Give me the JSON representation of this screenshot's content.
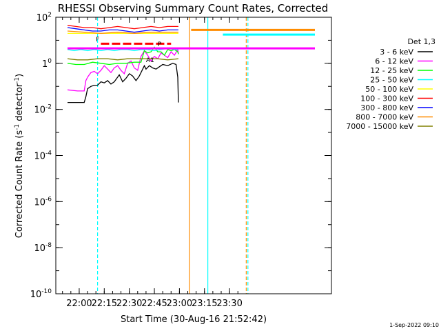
{
  "chart_data": {
    "type": "line",
    "title": "RHESSI Observing Summary Count Rates, Corrected",
    "xlabel": "Start Time (30-Aug-16 21:52:42)",
    "ylabel_base": "Corrected Count Rate (s",
    "ylabel_sup1": "-1",
    "ylabel_mid": " detector",
    "ylabel_sup2": "-1",
    "ylabel_end": ")",
    "y_log": true,
    "x_range_min": [
      -7,
      158
    ],
    "ylim_log10": [
      -10,
      2
    ],
    "x_ticks": [
      {
        "min": 7,
        "label": "22:00"
      },
      {
        "min": 22,
        "label": "22:15"
      },
      {
        "min": 37,
        "label": "22:30"
      },
      {
        "min": 52,
        "label": "22:45"
      },
      {
        "min": 67,
        "label": "23:00"
      },
      {
        "min": 82,
        "label": "23:15"
      },
      {
        "min": 97,
        "label": "23:30"
      }
    ],
    "y_ticks": [
      {
        "exp": 2,
        "base": "10",
        "sup": "2"
      },
      {
        "exp": 0,
        "base": "1",
        "sup": "0"
      },
      {
        "exp": -2,
        "base": "10",
        "sup": "-2"
      },
      {
        "exp": -4,
        "base": "10",
        "sup": "-4"
      },
      {
        "exp": -6,
        "base": "10",
        "sup": "-6"
      },
      {
        "exp": -8,
        "base": "10",
        "sup": "-8"
      },
      {
        "exp": -10,
        "base": "10",
        "sup": "-10"
      }
    ],
    "legend_title": "Det 1,3",
    "legend_position": "right",
    "series": [
      {
        "name": "3 - 6 keV",
        "color": "#000000",
        "points": [
          [
            0,
            -1.7
          ],
          [
            6,
            -1.7
          ],
          [
            10,
            -1.7
          ],
          [
            11,
            -1.45
          ],
          [
            12,
            -1.1
          ],
          [
            14,
            -1.0
          ],
          [
            16,
            -0.95
          ],
          [
            18,
            -0.95
          ],
          [
            20,
            -0.8
          ],
          [
            22,
            -0.85
          ],
          [
            24,
            -0.75
          ],
          [
            26,
            -0.9
          ],
          [
            28,
            -0.8
          ],
          [
            30,
            -0.6
          ],
          [
            31,
            -0.5
          ],
          [
            33,
            -0.8
          ],
          [
            35,
            -0.65
          ],
          [
            37,
            -0.45
          ],
          [
            39,
            -0.55
          ],
          [
            41,
            -0.75
          ],
          [
            43,
            -0.55
          ],
          [
            45,
            -0.25
          ],
          [
            46,
            -0.1
          ],
          [
            47,
            -0.25
          ],
          [
            49,
            -0.1
          ],
          [
            51,
            -0.2
          ],
          [
            53,
            -0.25
          ],
          [
            55,
            -0.15
          ],
          [
            57,
            -0.05
          ],
          [
            60,
            -0.1
          ],
          [
            63,
            0.0
          ],
          [
            65,
            -0.05
          ],
          [
            66,
            -0.6
          ],
          [
            66.4,
            -1.7
          ]
        ]
      },
      {
        "name": "6 - 12 keV",
        "color": "#ff00ff",
        "points": [
          [
            0,
            -1.15
          ],
          [
            6,
            -1.2
          ],
          [
            10,
            -1.2
          ],
          [
            11,
            -0.75
          ],
          [
            12,
            -0.6
          ],
          [
            14,
            -0.4
          ],
          [
            16,
            -0.35
          ],
          [
            18,
            -0.45
          ],
          [
            20,
            -0.3
          ],
          [
            22,
            -0.1
          ],
          [
            24,
            -0.25
          ],
          [
            26,
            -0.4
          ],
          [
            28,
            -0.2
          ],
          [
            30,
            -0.1
          ],
          [
            32,
            -0.3
          ],
          [
            34,
            -0.45
          ],
          [
            36,
            0.0
          ],
          [
            38,
            0.1
          ],
          [
            40,
            -0.2
          ],
          [
            42,
            -0.3
          ],
          [
            44,
            0.3
          ],
          [
            46,
            0.55
          ],
          [
            48,
            0.35
          ],
          [
            50,
            0.1
          ],
          [
            52,
            0.3
          ],
          [
            54,
            0.2
          ],
          [
            56,
            0.45
          ],
          [
            58,
            0.35
          ],
          [
            60,
            0.25
          ],
          [
            62,
            0.5
          ],
          [
            64,
            0.35
          ],
          [
            66,
            0.6
          ],
          [
            66.4,
            0.4
          ]
        ]
      },
      {
        "name": "12 - 25 keV",
        "color": "#00ff00",
        "points": [
          [
            0,
            0.0
          ],
          [
            5,
            -0.05
          ],
          [
            10,
            -0.05
          ],
          [
            15,
            0.05
          ],
          [
            20,
            0.0
          ],
          [
            25,
            -0.05
          ],
          [
            30,
            0.0
          ],
          [
            35,
            0.0
          ],
          [
            40,
            0.05
          ],
          [
            44,
            0.05
          ],
          [
            46,
            0.55
          ],
          [
            48,
            0.45
          ],
          [
            50,
            0.5
          ],
          [
            52,
            0.7
          ],
          [
            54,
            0.5
          ],
          [
            56,
            0.5
          ],
          [
            58,
            0.35
          ],
          [
            60,
            0.6
          ],
          [
            62,
            0.55
          ],
          [
            64,
            0.6
          ],
          [
            66,
            0.5
          ],
          [
            66.4,
            0.4
          ]
        ]
      },
      {
        "name": "25 - 50 keV",
        "color": "#00ffff",
        "points": [
          [
            0,
            0.6
          ],
          [
            4,
            0.55
          ],
          [
            8,
            0.6
          ],
          [
            12,
            0.55
          ],
          [
            16,
            0.6
          ],
          [
            20,
            0.55
          ],
          [
            24,
            0.6
          ],
          [
            28,
            0.55
          ],
          [
            32,
            0.6
          ],
          [
            36,
            0.6
          ],
          [
            40,
            0.55
          ],
          [
            44,
            0.6
          ],
          [
            48,
            0.6
          ],
          [
            52,
            0.55
          ],
          [
            56,
            0.6
          ],
          [
            60,
            0.65
          ],
          [
            64,
            0.6
          ],
          [
            66.4,
            0.6
          ]
        ]
      },
      {
        "name": "50 - 100 keV",
        "color": "#ffff00",
        "points": [
          [
            0,
            1.3
          ],
          [
            66.4,
            1.3
          ]
        ]
      },
      {
        "name": "100 - 300 keV",
        "color": "#ff0000",
        "points": [
          [
            0,
            1.65
          ],
          [
            5,
            1.6
          ],
          [
            10,
            1.55
          ],
          [
            15,
            1.55
          ],
          [
            20,
            1.5
          ],
          [
            25,
            1.55
          ],
          [
            30,
            1.6
          ],
          [
            35,
            1.55
          ],
          [
            40,
            1.5
          ],
          [
            45,
            1.55
          ],
          [
            50,
            1.6
          ],
          [
            55,
            1.55
          ],
          [
            60,
            1.6
          ],
          [
            66.4,
            1.6
          ]
        ]
      },
      {
        "name": "300 - 800 keV",
        "color": "#0000ff",
        "points": [
          [
            0,
            1.55
          ],
          [
            5,
            1.5
          ],
          [
            10,
            1.45
          ],
          [
            15,
            1.4
          ],
          [
            20,
            1.4
          ],
          [
            25,
            1.45
          ],
          [
            30,
            1.45
          ],
          [
            35,
            1.4
          ],
          [
            40,
            1.35
          ],
          [
            45,
            1.4
          ],
          [
            50,
            1.45
          ],
          [
            55,
            1.4
          ],
          [
            60,
            1.45
          ],
          [
            66.4,
            1.45
          ]
        ]
      },
      {
        "name": "800 - 7000 keV",
        "color": "#ff8c00",
        "points": [
          [
            0,
            1.4
          ],
          [
            10,
            1.35
          ],
          [
            20,
            1.3
          ],
          [
            30,
            1.35
          ],
          [
            40,
            1.3
          ],
          [
            50,
            1.35
          ],
          [
            60,
            1.35
          ],
          [
            66.4,
            1.35
          ]
        ]
      },
      {
        "name": "7000 - 15000 keV",
        "color": "#808000",
        "points": [
          [
            0,
            0.2
          ],
          [
            6,
            0.15
          ],
          [
            12,
            0.15
          ],
          [
            18,
            0.2
          ],
          [
            24,
            0.2
          ],
          [
            30,
            0.15
          ],
          [
            36,
            0.2
          ],
          [
            42,
            0.2
          ],
          [
            48,
            0.2
          ],
          [
            54,
            0.2
          ],
          [
            60,
            0.15
          ],
          [
            66.4,
            0.2
          ]
        ]
      }
    ],
    "bars": [
      {
        "color": "#ff00ff",
        "y_log": 0.65,
        "x": [
          0,
          159
        ]
      },
      {
        "color": "#ff8c00",
        "y_log": 1.45,
        "x": [
          74,
          159
        ]
      },
      {
        "color": "#00ffff",
        "y_log": 1.25,
        "x": [
          93,
          159
        ]
      },
      {
        "color": "#ff0000",
        "y_log": 0.85,
        "x": [
          20,
          62
        ],
        "dashed": true
      }
    ],
    "vlines": [
      {
        "x": 18,
        "color": "#00ffff",
        "dashed": true
      },
      {
        "x": 73,
        "color": "#ff8c00",
        "dashed": false
      },
      {
        "x": 84,
        "color": "#00ffff",
        "dashed": false
      },
      {
        "x": 107,
        "color": "#ff8c00",
        "dashed": true
      },
      {
        "x": 108,
        "color": "#00ffff",
        "dashed": true
      }
    ],
    "flare_markers": [
      {
        "text": "F",
        "x": 17,
        "y_log": 0.95
      },
      {
        "text": "A1",
        "x": 47,
        "y_log": 0.05
      },
      {
        "text": "P",
        "x": 54,
        "y_log": 0.75
      }
    ]
  },
  "footer": {
    "timestamp": "1-Sep-2022 09:10"
  }
}
